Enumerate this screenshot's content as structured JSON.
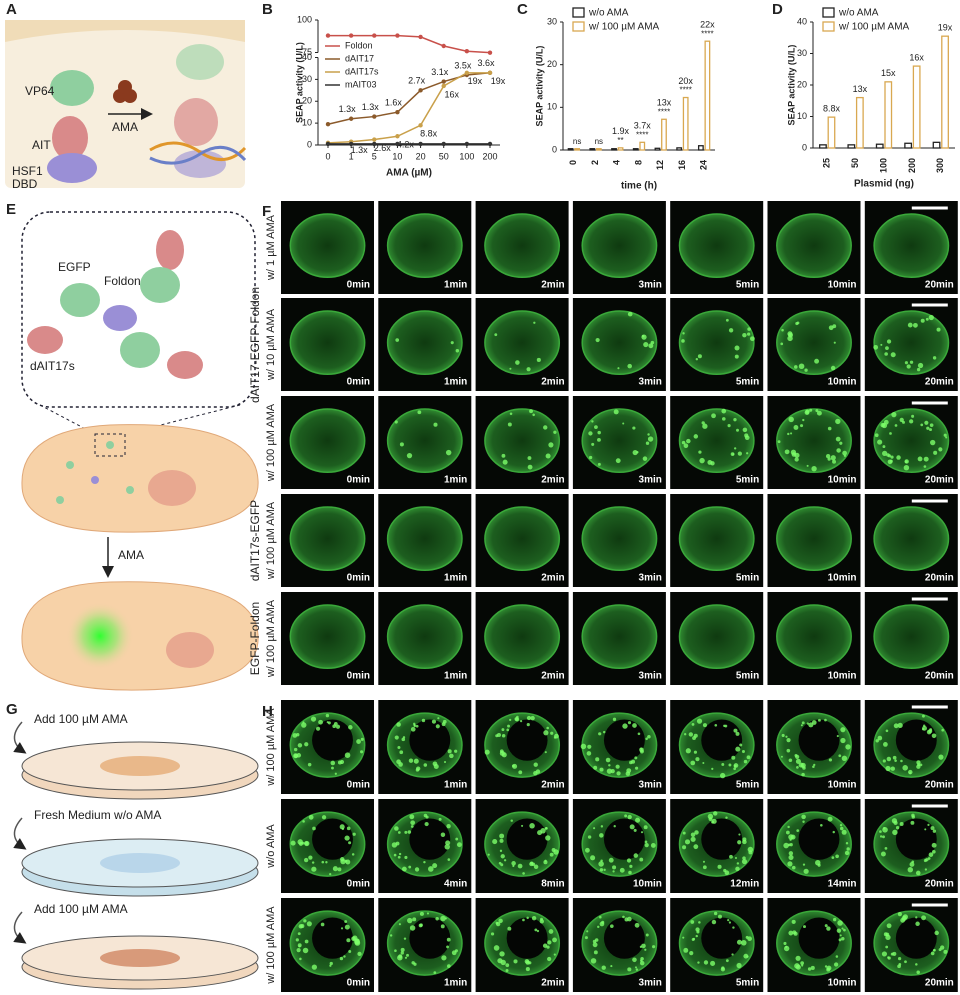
{
  "panel_labels": [
    "A",
    "B",
    "C",
    "D",
    "E",
    "F",
    "G",
    "H"
  ],
  "panel_a": {
    "labels": [
      "VP64",
      "AIT",
      "HSF1",
      "DBD",
      "AMA"
    ]
  },
  "panel_e": {
    "labels": [
      "EGFP",
      "Foldon",
      "dAIT17s"
    ],
    "arrow_label": "AMA"
  },
  "panel_f": {
    "groups": [
      {
        "name": "dAIT17-EGFP-Foldon",
        "rows": [
          {
            "condition": "w/ 1 µM AMA",
            "times": [
              "0min",
              "1min",
              "2min",
              "3min",
              "5min",
              "10min",
              "20min"
            ]
          },
          {
            "condition": "w/ 10 µM AMA",
            "times": [
              "0min",
              "1min",
              "2min",
              "3min",
              "5min",
              "10min",
              "20min"
            ]
          },
          {
            "condition": "w/ 100 µM AMA",
            "times": [
              "0min",
              "1min",
              "2min",
              "3min",
              "5min",
              "10min",
              "20min"
            ]
          }
        ]
      },
      {
        "name": "dAIT17s-EGFP",
        "rows": [
          {
            "condition": "w/ 100 µM AMA",
            "times": [
              "0min",
              "1min",
              "2min",
              "3min",
              "5min",
              "10min",
              "20min"
            ]
          }
        ]
      },
      {
        "name": "EGFP-Foldon",
        "rows": [
          {
            "condition": "w/ 100 µM AMA",
            "times": [
              "0min",
              "1min",
              "2min",
              "3min",
              "5min",
              "10min",
              "20min"
            ]
          }
        ]
      }
    ]
  },
  "panel_g": {
    "steps": [
      "Add 100 µM AMA",
      "Fresh Medium w/o AMA",
      "Add 100 µM AMA"
    ]
  },
  "panel_h": {
    "rows": [
      {
        "condition": "w/ 100 µM AMA",
        "times": [
          "0min",
          "1min",
          "2min",
          "3min",
          "5min",
          "10min",
          "20min"
        ]
      },
      {
        "condition": "w/o AMA",
        "times": [
          "0min",
          "4min",
          "8min",
          "10min",
          "12min",
          "14min",
          "20min"
        ]
      },
      {
        "condition": "w/ 100 µM AMA",
        "times": [
          "0min",
          "1min",
          "2min",
          "3min",
          "5min",
          "10min",
          "20min"
        ]
      }
    ]
  },
  "chart_data": [
    {
      "type": "line",
      "x_label": "AMA (µM)",
      "y_label": "SEAP activity (U/L)",
      "categories": [
        "0",
        "1",
        "5",
        "10",
        "20",
        "50",
        "100",
        "200"
      ],
      "ylim": [
        0,
        100
      ],
      "y_break": [
        40,
        75
      ],
      "yticks": [
        0,
        10,
        20,
        30,
        40,
        75,
        100
      ],
      "series": [
        {
          "name": "Foldon",
          "color": "#c8504a",
          "values": [
            88,
            88,
            88,
            88,
            87,
            80,
            76,
            74
          ]
        },
        {
          "name": "dAIT17",
          "color": "#8b5a2b",
          "values": [
            9.5,
            12,
            13,
            15,
            25,
            29,
            32,
            33
          ],
          "fold_labels": [
            null,
            "1.3x",
            "1.3x",
            "1.6x",
            "2.7x",
            "3.1x",
            "3.5x",
            "3.6x"
          ]
        },
        {
          "name": "dAIT17s",
          "color": "#c9a04a",
          "values": [
            1,
            1.5,
            2.5,
            4,
            9,
            27,
            33,
            33
          ],
          "fold_labels": [
            null,
            "1.3x",
            "2.6x",
            "4.2x",
            "8.8x",
            "16x",
            "19x",
            "19x"
          ]
        },
        {
          "name": "mAIT03",
          "color": "#333333",
          "values": [
            0.5,
            0.5,
            0.5,
            0.5,
            0.5,
            0.5,
            0.5,
            0.5
          ]
        }
      ]
    },
    {
      "type": "bar",
      "x_label": "time (h)",
      "y_label": "SEAP activity (U/L)",
      "categories": [
        "0",
        "2",
        "4",
        "8",
        "12",
        "16",
        "24"
      ],
      "ylim": [
        0,
        30
      ],
      "yticks": [
        0,
        10,
        20,
        30
      ],
      "series": [
        {
          "name": "w/o AMA",
          "color": "#222222",
          "values": [
            0.3,
            0.3,
            0.3,
            0.3,
            0.4,
            0.5,
            1
          ]
        },
        {
          "name": "w/ 100 µM AMA",
          "color": "#d9a850",
          "values": [
            0.3,
            0.3,
            0.5,
            1.8,
            7.2,
            12.3,
            25.5
          ]
        }
      ],
      "fold_labels": [
        null,
        null,
        "1.9x",
        "3.7x",
        "13x",
        "20x",
        "22x"
      ],
      "significance": [
        "ns",
        "ns",
        "**",
        "****",
        "****",
        "****",
        "****"
      ]
    },
    {
      "type": "bar",
      "x_label": "Plasmid (ng)",
      "y_label": "SEAP activity (U/L)",
      "categories": [
        "25",
        "50",
        "100",
        "200",
        "300"
      ],
      "ylim": [
        0,
        40
      ],
      "yticks": [
        0,
        10,
        20,
        30,
        40
      ],
      "series": [
        {
          "name": "w/o AMA",
          "color": "#222222",
          "values": [
            1,
            1,
            1.2,
            1.5,
            1.8
          ]
        },
        {
          "name": "w/ 100 µM AMA",
          "color": "#d9a850",
          "values": [
            9.8,
            16,
            21,
            26,
            35.5
          ]
        }
      ],
      "fold_labels": [
        "8.8x",
        "13x",
        "15x",
        "16x",
        "19x"
      ]
    }
  ]
}
